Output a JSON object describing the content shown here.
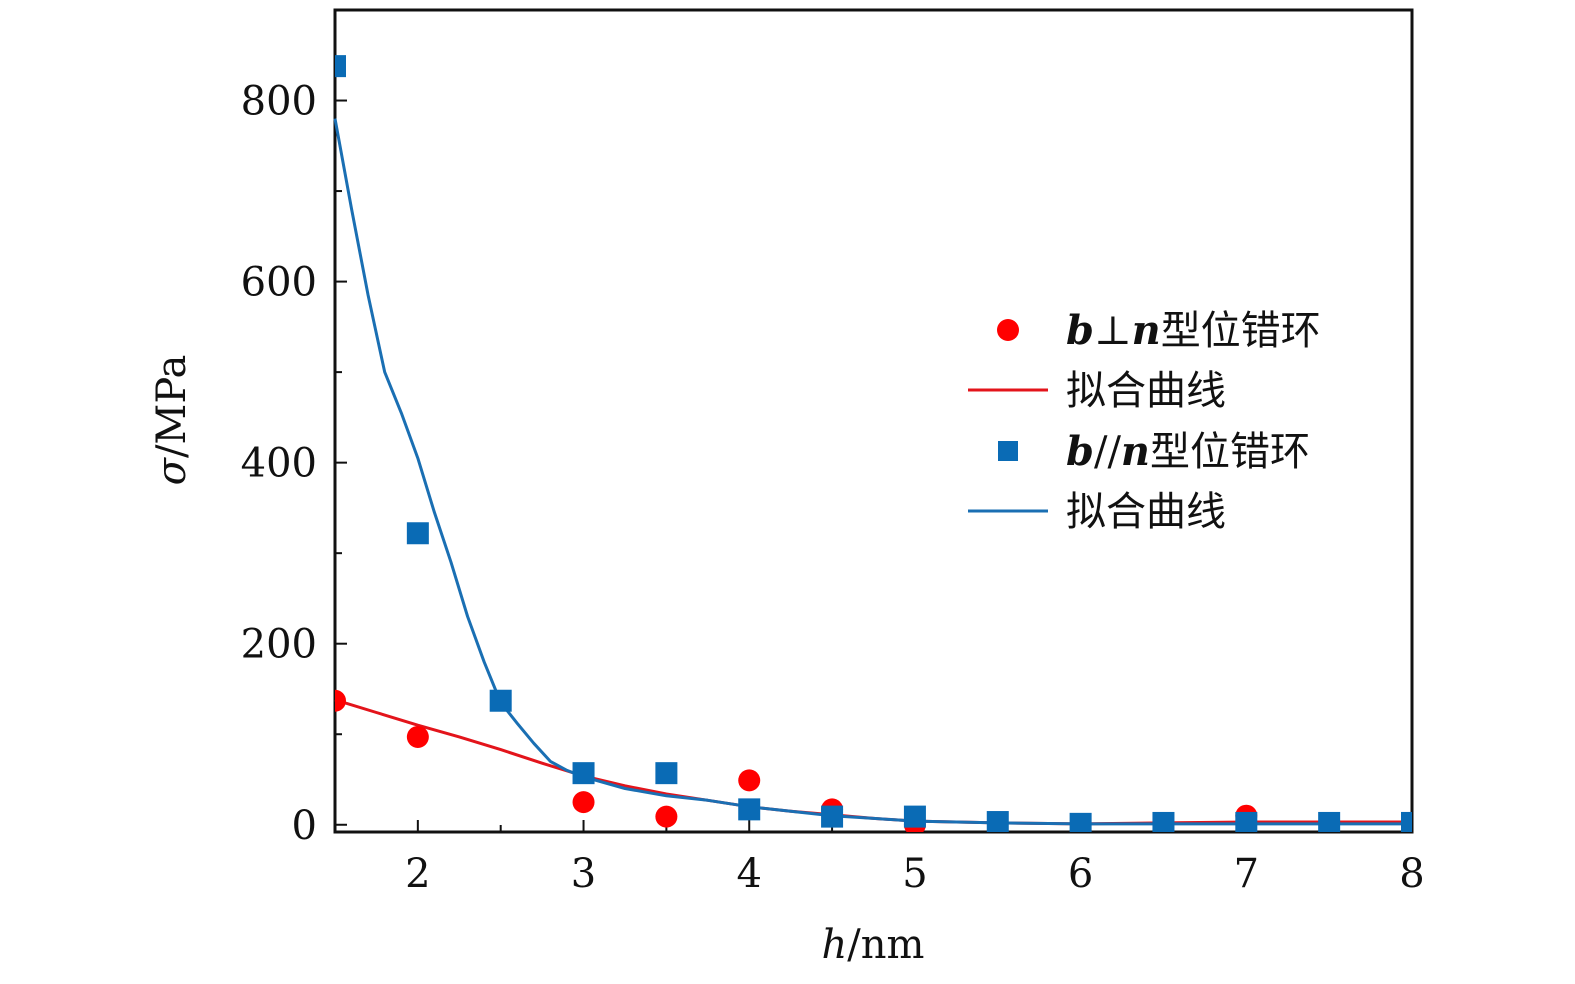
{
  "chart_data": {
    "type": "scatter",
    "xlabel": "h/nm",
    "ylabel": "σ/MPa",
    "xlim": [
      1.5,
      8
    ],
    "ylim": [
      -8,
      900
    ],
    "x_ticks": [
      2,
      3,
      4,
      5,
      6,
      7,
      8
    ],
    "y_ticks": [
      0,
      200,
      400,
      600,
      800
    ],
    "grid": false,
    "legend_position": "right",
    "series": [
      {
        "name": "b⊥n型位错环",
        "kind": "points",
        "marker": "circle",
        "color": "#ff0000",
        "x": [
          1.5,
          2,
          3,
          3.5,
          4,
          4.5,
          5,
          7
        ],
        "y": [
          137,
          97,
          25,
          9,
          49,
          17,
          0,
          10
        ]
      },
      {
        "name": "拟合曲线",
        "kind": "line",
        "color": "#e3141b",
        "x": [
          1.5,
          1.75,
          2,
          2.25,
          2.5,
          2.75,
          3,
          3.25,
          3.5,
          3.75,
          4,
          4.25,
          4.5,
          4.75,
          5,
          5.5,
          6,
          6.5,
          7,
          7.5,
          8
        ],
        "y": [
          138,
          124,
          110,
          97,
          83,
          68,
          54,
          43,
          34,
          27,
          20,
          15,
          11,
          7,
          4,
          2,
          1,
          2,
          3,
          3,
          3
        ]
      },
      {
        "name": "b//n型位错环",
        "kind": "points",
        "marker": "square",
        "color": "#0a6bb5",
        "x": [
          1.5,
          2,
          2.5,
          3,
          3.5,
          4,
          4.5,
          5,
          5.5,
          6,
          6.5,
          7,
          7.5,
          8
        ],
        "y": [
          838,
          322,
          137,
          57,
          57,
          17,
          9,
          9,
          3,
          1,
          2,
          2,
          2,
          2
        ]
      },
      {
        "name": "拟合曲线",
        "kind": "line",
        "color": "#1a6fb3",
        "x": [
          1.5,
          1.6,
          1.7,
          1.8,
          1.9,
          2,
          2.1,
          2.2,
          2.3,
          2.4,
          2.5,
          2.6,
          2.7,
          2.8,
          2.9,
          3,
          3.25,
          3.5,
          3.75,
          4,
          4.25,
          4.5,
          4.75,
          5,
          5.5,
          6,
          6.5,
          7,
          7.5,
          8
        ],
        "y": [
          780,
          680,
          585,
          500,
          455,
          405,
          345,
          290,
          230,
          180,
          135,
          112,
          90,
          70,
          60,
          53,
          40,
          32,
          27,
          20,
          15,
          10,
          7,
          4,
          2,
          1,
          1,
          1,
          1,
          1
        ]
      }
    ],
    "legend": [
      {
        "prefix": "b",
        "op": "⊥",
        "suffix_var": "n",
        "tail": "型位错环",
        "symbol": "circle",
        "color": "#ff0000"
      },
      {
        "text": "拟合曲线",
        "symbol": "line",
        "color": "#e3141b"
      },
      {
        "prefix": "b",
        "op": "//",
        "suffix_var": "n",
        "tail": "型位错环",
        "symbol": "square",
        "color": "#0a6bb5"
      },
      {
        "text": "拟合曲线",
        "symbol": "line",
        "color": "#1a6fb3"
      }
    ]
  }
}
